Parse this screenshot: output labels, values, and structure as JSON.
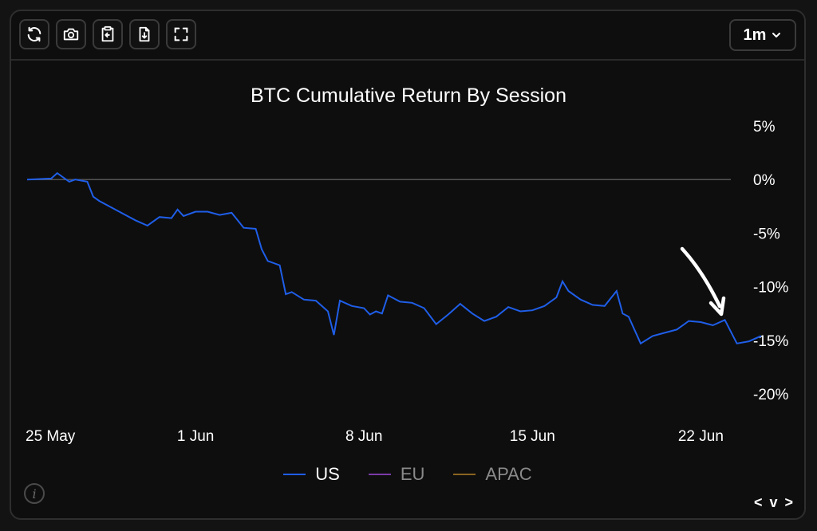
{
  "toolbar": {
    "buttons": [
      {
        "name": "refresh-icon"
      },
      {
        "name": "camera-icon"
      },
      {
        "name": "clipboard-icon"
      },
      {
        "name": "download-file-icon"
      },
      {
        "name": "fullscreen-icon"
      }
    ],
    "range_label": "1m"
  },
  "chart_data": {
    "type": "line",
    "title": "BTC Cumulative Return By Session",
    "xlabel": "",
    "ylabel": "",
    "x_tick_labels": [
      "25 May",
      "1 Jun",
      "8 Jun",
      "15 Jun",
      "22 Jun"
    ],
    "y_tick_labels": [
      "5%",
      "0%",
      "-5%",
      "-10%",
      "-15%",
      "-20%"
    ],
    "y_ticks": [
      5,
      0,
      -5,
      -10,
      -15,
      -20
    ],
    "ylim": [
      -20,
      5
    ],
    "xlim": [
      "2024-05-25",
      "2024-06-26"
    ],
    "grid": false,
    "zero_line": true,
    "legend_position": "bottom-center",
    "series": [
      {
        "name": "US",
        "color": "#1f5ee8",
        "points": [
          [
            "2024-05-25",
            0.0
          ],
          [
            "2024-05-26",
            0.1
          ],
          [
            "2024-05-26 06:00",
            0.6
          ],
          [
            "2024-05-26 18:00",
            -0.2
          ],
          [
            "2024-05-27",
            0.0
          ],
          [
            "2024-05-27 12:00",
            -0.2
          ],
          [
            "2024-05-27 18:00",
            -1.6
          ],
          [
            "2024-05-28",
            -2.0
          ],
          [
            "2024-05-28 12:00",
            -2.6
          ],
          [
            "2024-05-29",
            -3.2
          ],
          [
            "2024-05-29 12:00",
            -3.8
          ],
          [
            "2024-05-30",
            -4.3
          ],
          [
            "2024-05-30 12:00",
            -3.5
          ],
          [
            "2024-05-31",
            -3.6
          ],
          [
            "2024-05-31 06:00",
            -2.8
          ],
          [
            "2024-05-31 12:00",
            -3.4
          ],
          [
            "2024-06-01",
            -3.0
          ],
          [
            "2024-06-01 12:00",
            -3.0
          ],
          [
            "2024-06-02",
            -3.3
          ],
          [
            "2024-06-02 12:00",
            -3.1
          ],
          [
            "2024-06-02 18:00",
            -3.8
          ],
          [
            "2024-06-03",
            -4.5
          ],
          [
            "2024-06-03 12:00",
            -4.6
          ],
          [
            "2024-06-03 18:00",
            -6.5
          ],
          [
            "2024-06-04",
            -7.6
          ],
          [
            "2024-06-04 12:00",
            -8.0
          ],
          [
            "2024-06-04 18:00",
            -10.7
          ],
          [
            "2024-06-05",
            -10.5
          ],
          [
            "2024-06-05 12:00",
            -11.2
          ],
          [
            "2024-06-06",
            -11.3
          ],
          [
            "2024-06-06 12:00",
            -12.3
          ],
          [
            "2024-06-06 18:00",
            -14.5
          ],
          [
            "2024-06-07",
            -11.3
          ],
          [
            "2024-06-07 12:00",
            -11.8
          ],
          [
            "2024-06-08",
            -12.0
          ],
          [
            "2024-06-08 06:00",
            -12.6
          ],
          [
            "2024-06-08 12:00",
            -12.3
          ],
          [
            "2024-06-08 18:00",
            -12.5
          ],
          [
            "2024-06-09",
            -10.8
          ],
          [
            "2024-06-09 12:00",
            -11.4
          ],
          [
            "2024-06-10",
            -11.5
          ],
          [
            "2024-06-10 12:00",
            -12.0
          ],
          [
            "2024-06-11",
            -13.5
          ],
          [
            "2024-06-11 12:00",
            -12.6
          ],
          [
            "2024-06-12",
            -11.6
          ],
          [
            "2024-06-12 12:00",
            -12.5
          ],
          [
            "2024-06-13",
            -13.2
          ],
          [
            "2024-06-13 12:00",
            -12.8
          ],
          [
            "2024-06-14",
            -11.9
          ],
          [
            "2024-06-14 12:00",
            -12.3
          ],
          [
            "2024-06-15",
            -12.2
          ],
          [
            "2024-06-15 12:00",
            -11.8
          ],
          [
            "2024-06-16",
            -11.0
          ],
          [
            "2024-06-16 06:00",
            -9.5
          ],
          [
            "2024-06-16 12:00",
            -10.4
          ],
          [
            "2024-06-17",
            -11.2
          ],
          [
            "2024-06-17 12:00",
            -11.7
          ],
          [
            "2024-06-18",
            -11.8
          ],
          [
            "2024-06-18 12:00",
            -10.4
          ],
          [
            "2024-06-18 18:00",
            -12.5
          ],
          [
            "2024-06-19",
            -12.8
          ],
          [
            "2024-06-19 12:00",
            -15.3
          ],
          [
            "2024-06-20",
            -14.6
          ],
          [
            "2024-06-20 12:00",
            -14.3
          ],
          [
            "2024-06-21",
            -14.0
          ],
          [
            "2024-06-21 12:00",
            -13.2
          ],
          [
            "2024-06-22",
            -13.3
          ],
          [
            "2024-06-22 12:00",
            -13.6
          ],
          [
            "2024-06-23",
            -13.1
          ],
          [
            "2024-06-23 12:00",
            -15.3
          ],
          [
            "2024-06-24",
            -15.1
          ],
          [
            "2024-06-24 12:00",
            -14.6
          ]
        ]
      },
      {
        "name": "EU",
        "color": "#7a3aa8",
        "points": []
      },
      {
        "name": "APAC",
        "color": "#8a6420",
        "points": []
      }
    ]
  },
  "legend": {
    "items": [
      {
        "label": "US",
        "color": "#1f5ee8"
      },
      {
        "label": "EU",
        "color": "#7a3aa8"
      },
      {
        "label": "APAC",
        "color": "#8a6420"
      }
    ]
  },
  "footer": {
    "info_glyph": "i",
    "nav_label": "< v >"
  }
}
